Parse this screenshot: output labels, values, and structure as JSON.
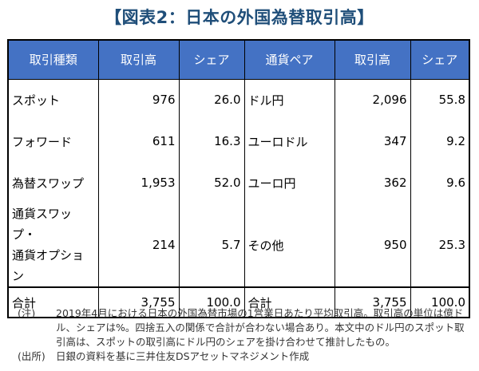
{
  "title": "【図表2：日本の外国為替取引高】",
  "table": {
    "headers": [
      "取引種類",
      "取引高",
      "シェア",
      "通貨ペア",
      "取引高",
      "シェア"
    ],
    "rows": [
      {
        "type_lines": [
          "スポット"
        ],
        "volume": "976",
        "share": "26.0",
        "pair": "ドル円",
        "pair_volume": "2,096",
        "pair_share": "55.8"
      },
      {
        "type_lines": [
          "フォワード"
        ],
        "volume": "611",
        "share": "16.3",
        "pair": "ユーロドル",
        "pair_volume": "347",
        "pair_share": "9.2"
      },
      {
        "type_lines": [
          "為替スワップ"
        ],
        "volume": "1,953",
        "share": "52.0",
        "pair": "ユーロ円",
        "pair_volume": "362",
        "pair_share": "9.6"
      },
      {
        "type_lines": [
          "通貨スワップ・",
          "通貨オプション"
        ],
        "volume": "214",
        "share": "5.7",
        "pair": "その他",
        "pair_volume": "950",
        "pair_share": "25.3"
      }
    ],
    "total": {
      "label": "合計",
      "volume": "3,755",
      "share": "100.0",
      "pair_label": "合計",
      "pair_volume": "3,755",
      "pair_share": "100.0"
    }
  },
  "notes": {
    "note_tag": "(注)",
    "note_text": "2019年4月における日本の外国為替市場の1営業日あたり平均取引高。取引高の単位は億ドル、シェアは%。四捨五入の関係で合計が合わない場合あり。本文中のドル円のスポット取引高は、スポットの取引高にドル円のシェアを掛け合わせて推計したもの。",
    "source_tag": "(出所)",
    "source_text": "日銀の資料を基に三井住友DSアセットマネジメント作成"
  }
}
